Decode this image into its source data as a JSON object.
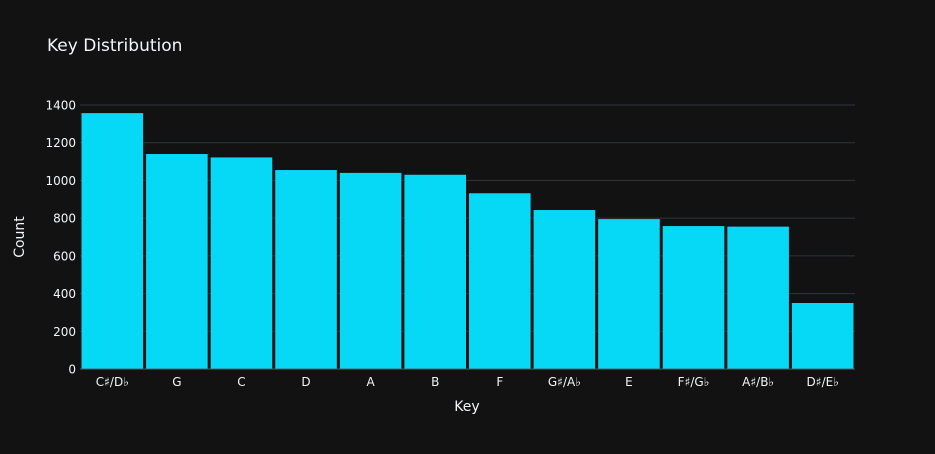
{
  "chart_data": {
    "type": "bar",
    "title": "Key Distribution",
    "xlabel": "Key",
    "ylabel": "Count",
    "categories": [
      "C♯/D♭",
      "G",
      "C",
      "D",
      "A",
      "B",
      "F",
      "G♯/A♭",
      "E",
      "F♯/G♭",
      "A♯/B♭",
      "D♯/E♭"
    ],
    "values": [
      1357,
      1140,
      1122,
      1055,
      1040,
      1030,
      932,
      843,
      795,
      758,
      755,
      350
    ],
    "ylim": [
      0,
      1400
    ],
    "yticks": [
      0,
      200,
      400,
      600,
      800,
      1000,
      1200,
      1400
    ],
    "grid": true,
    "bar_color": "#06d9f5",
    "background": "#121212",
    "grid_color": "#2e3440",
    "text_color": "#f2f5fa"
  }
}
